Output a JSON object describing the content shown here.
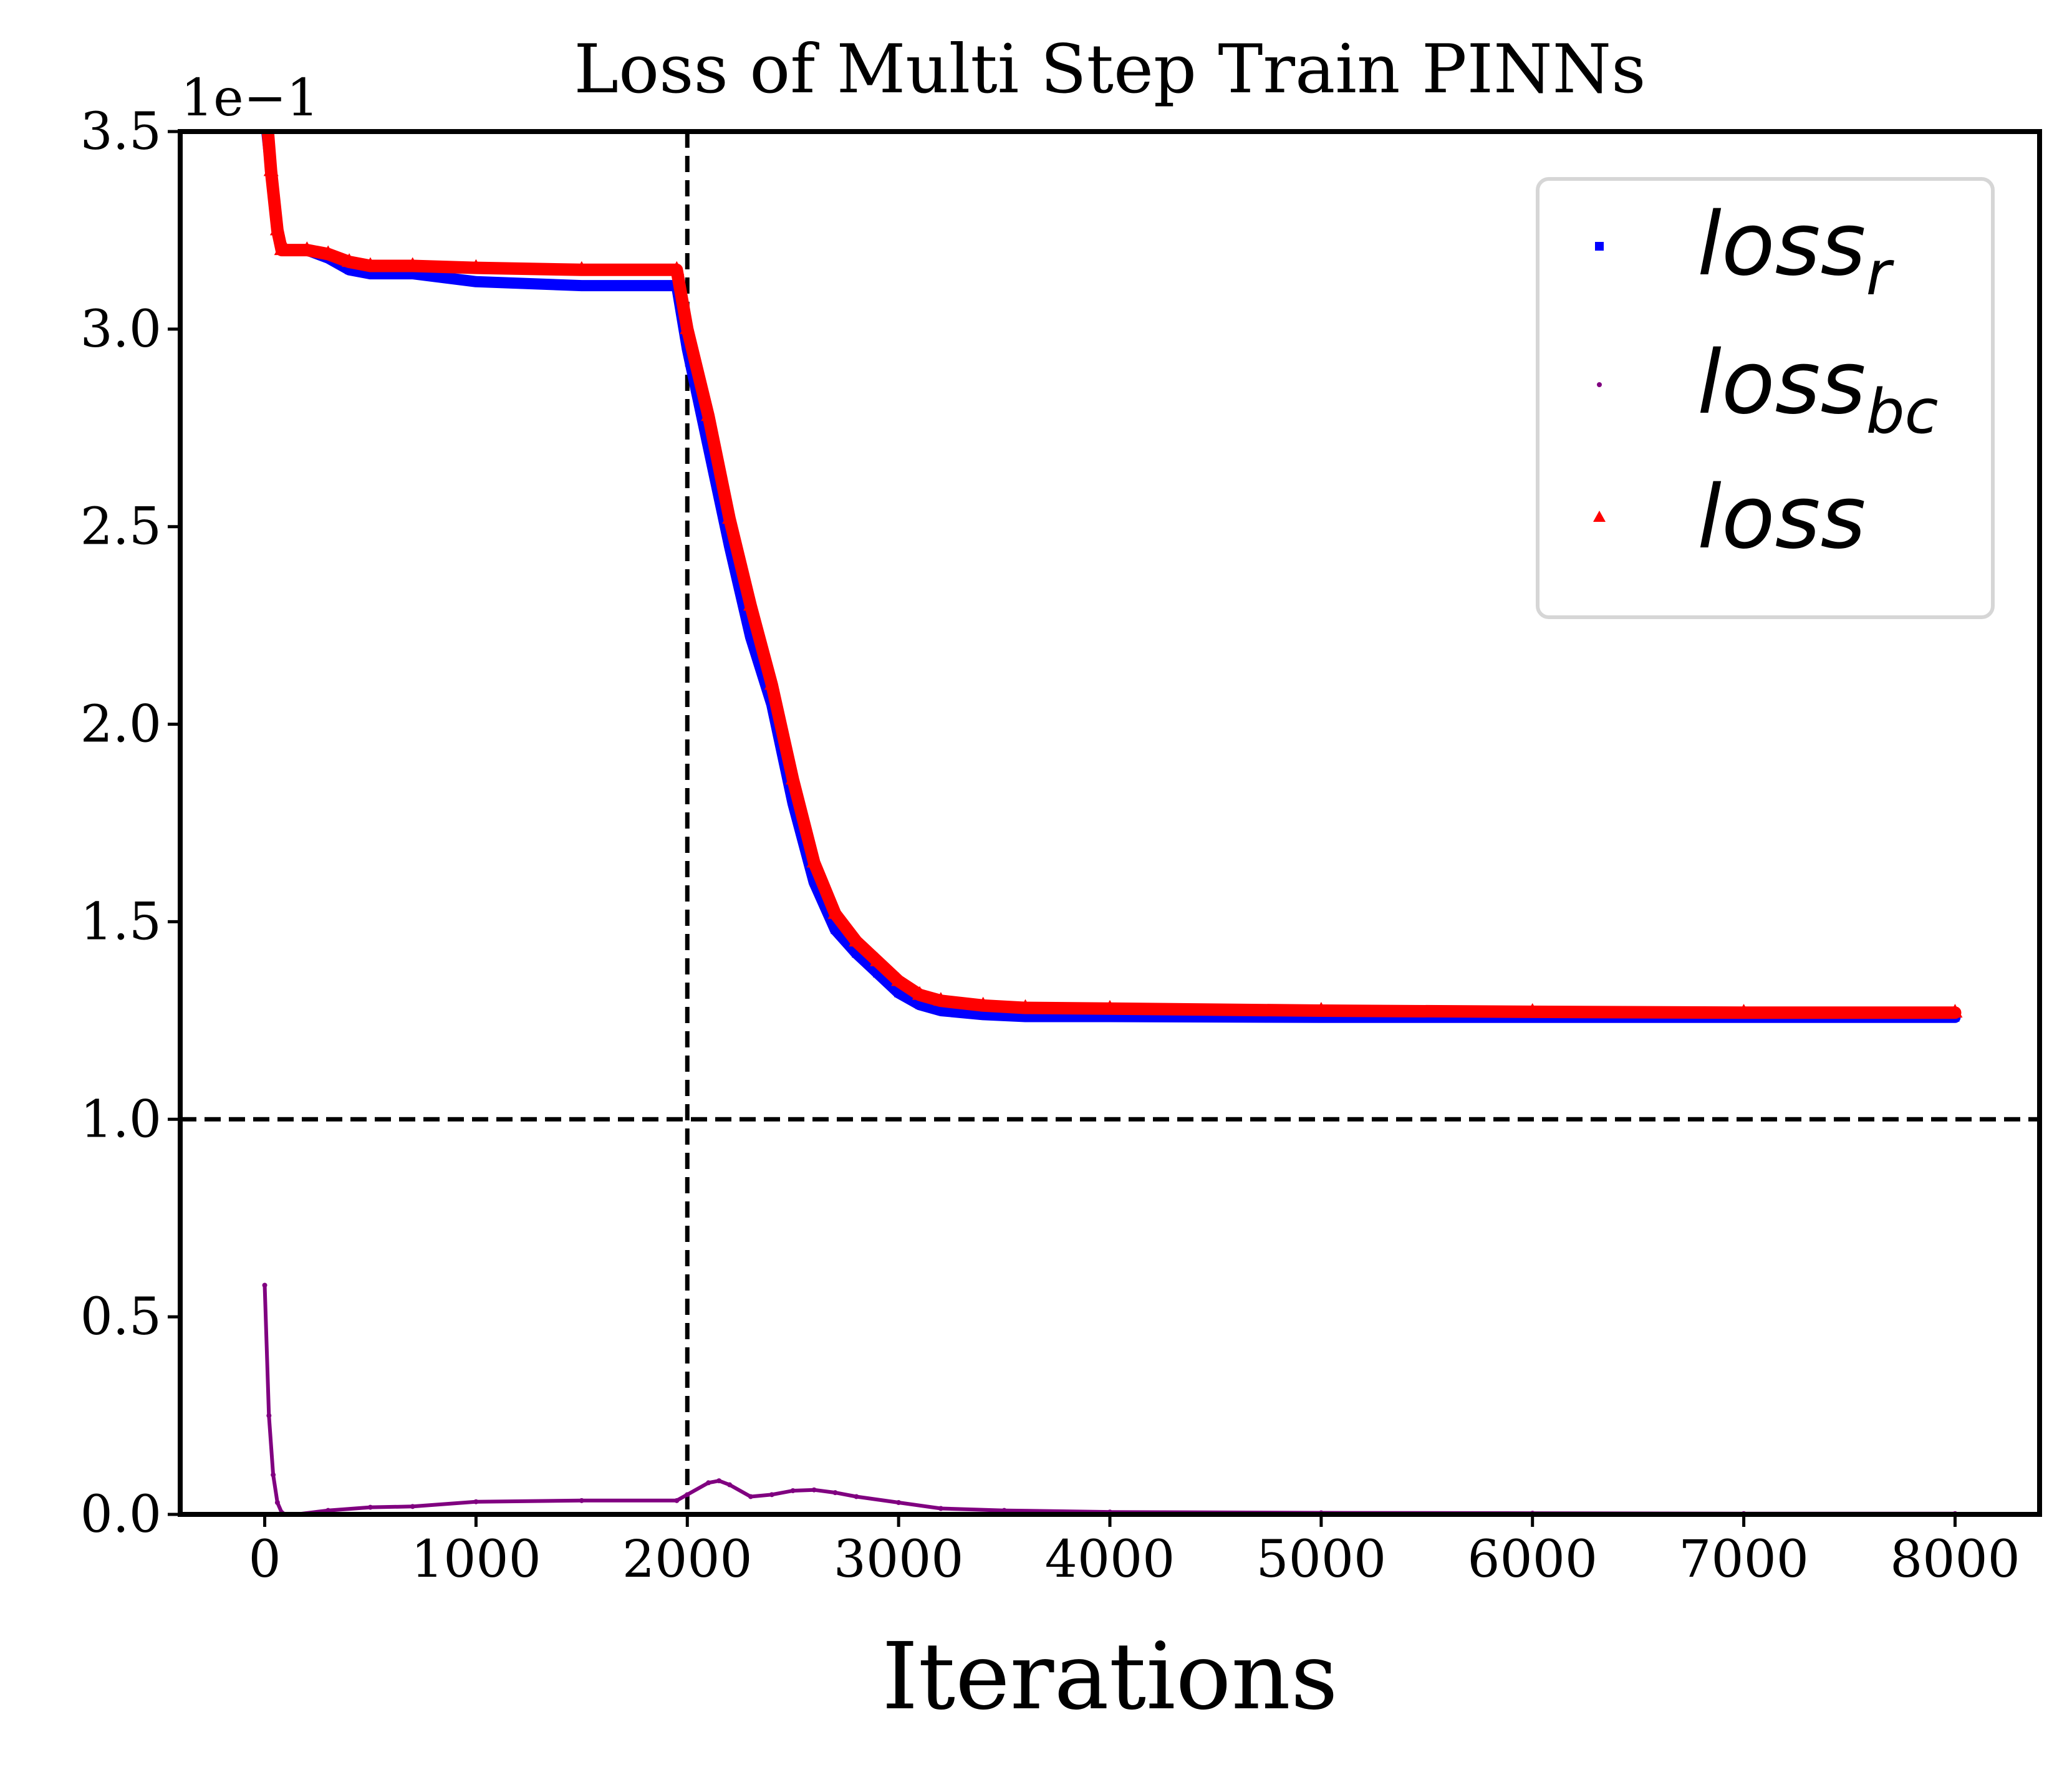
{
  "chart_data": {
    "type": "line",
    "title": "Loss of Multi Step Train PINNs",
    "xlabel": "Iterations",
    "ylabel": "",
    "y_offset_text": "1e−1",
    "xlim": [
      -400,
      8400
    ],
    "ylim": [
      0.0,
      3.5
    ],
    "xticks": [
      0,
      1000,
      2000,
      3000,
      4000,
      5000,
      6000,
      7000,
      8000
    ],
    "xtick_labels": [
      "0",
      "1000",
      "2000",
      "3000",
      "4000",
      "5000",
      "6000",
      "7000",
      "8000"
    ],
    "yticks": [
      0.0,
      0.5,
      1.0,
      1.5,
      2.0,
      2.5,
      3.0,
      3.5
    ],
    "ytick_labels": [
      "0.0",
      "0.5",
      "1.0",
      "1.5",
      "2.0",
      "2.5",
      "3.0",
      "3.5"
    ],
    "grid": false,
    "legend_position": "top-right",
    "reference_lines": [
      {
        "orientation": "vertical",
        "value": 2000,
        "style": "dashed",
        "color": "#000000"
      },
      {
        "orientation": "horizontal",
        "value": 1.0,
        "style": "dashed",
        "color": "#000000"
      }
    ],
    "series": [
      {
        "name": "loss_r",
        "legend_main": "loss",
        "legend_sub": "r",
        "color": "#0000ff",
        "marker": "square",
        "x": [
          0,
          30,
          60,
          80,
          100,
          200,
          300,
          400,
          500,
          700,
          1000,
          1500,
          1950,
          2000,
          2100,
          2200,
          2300,
          2400,
          2500,
          2600,
          2700,
          2800,
          2900,
          3000,
          3100,
          3200,
          3400,
          3600,
          4000,
          5000,
          6000,
          7000,
          8000
        ],
        "y": [
          3.55,
          3.4,
          3.25,
          3.2,
          3.2,
          3.2,
          3.18,
          3.15,
          3.14,
          3.14,
          3.12,
          3.11,
          3.11,
          2.95,
          2.7,
          2.45,
          2.22,
          2.05,
          1.8,
          1.6,
          1.48,
          1.42,
          1.37,
          1.32,
          1.29,
          1.275,
          1.265,
          1.26,
          1.26,
          1.258,
          1.258,
          1.258,
          1.258
        ]
      },
      {
        "name": "loss_bc",
        "legend_main": "loss",
        "legend_sub": "bc",
        "color": "#800080",
        "marker": "dot",
        "x": [
          0,
          20,
          40,
          60,
          80,
          100,
          150,
          300,
          500,
          700,
          1000,
          1500,
          1950,
          2000,
          2100,
          2150,
          2200,
          2300,
          2400,
          2500,
          2600,
          2700,
          2800,
          3000,
          3200,
          3500,
          4000,
          5000,
          6000,
          7000,
          8000
        ],
        "y": [
          0.58,
          0.25,
          0.1,
          0.03,
          0.005,
          0.0,
          0.0,
          0.01,
          0.018,
          0.02,
          0.032,
          0.035,
          0.035,
          0.05,
          0.08,
          0.085,
          0.075,
          0.045,
          0.05,
          0.06,
          0.062,
          0.055,
          0.045,
          0.03,
          0.015,
          0.01,
          0.006,
          0.004,
          0.003,
          0.002,
          0.002
        ]
      },
      {
        "name": "loss",
        "legend_main": "loss",
        "legend_sub": "",
        "color": "#ff0000",
        "marker": "triangle",
        "x": [
          0,
          30,
          60,
          80,
          100,
          200,
          300,
          400,
          500,
          700,
          1000,
          1500,
          1950,
          2000,
          2100,
          2200,
          2300,
          2400,
          2500,
          2600,
          2700,
          2800,
          2900,
          3000,
          3100,
          3200,
          3400,
          3600,
          4000,
          5000,
          6000,
          7000,
          8000
        ],
        "y": [
          3.6,
          3.4,
          3.25,
          3.2,
          3.2,
          3.2,
          3.19,
          3.17,
          3.16,
          3.16,
          3.155,
          3.15,
          3.15,
          3.0,
          2.78,
          2.52,
          2.3,
          2.1,
          1.86,
          1.65,
          1.52,
          1.45,
          1.4,
          1.35,
          1.315,
          1.3,
          1.288,
          1.282,
          1.28,
          1.275,
          1.272,
          1.27,
          1.27
        ]
      }
    ]
  }
}
